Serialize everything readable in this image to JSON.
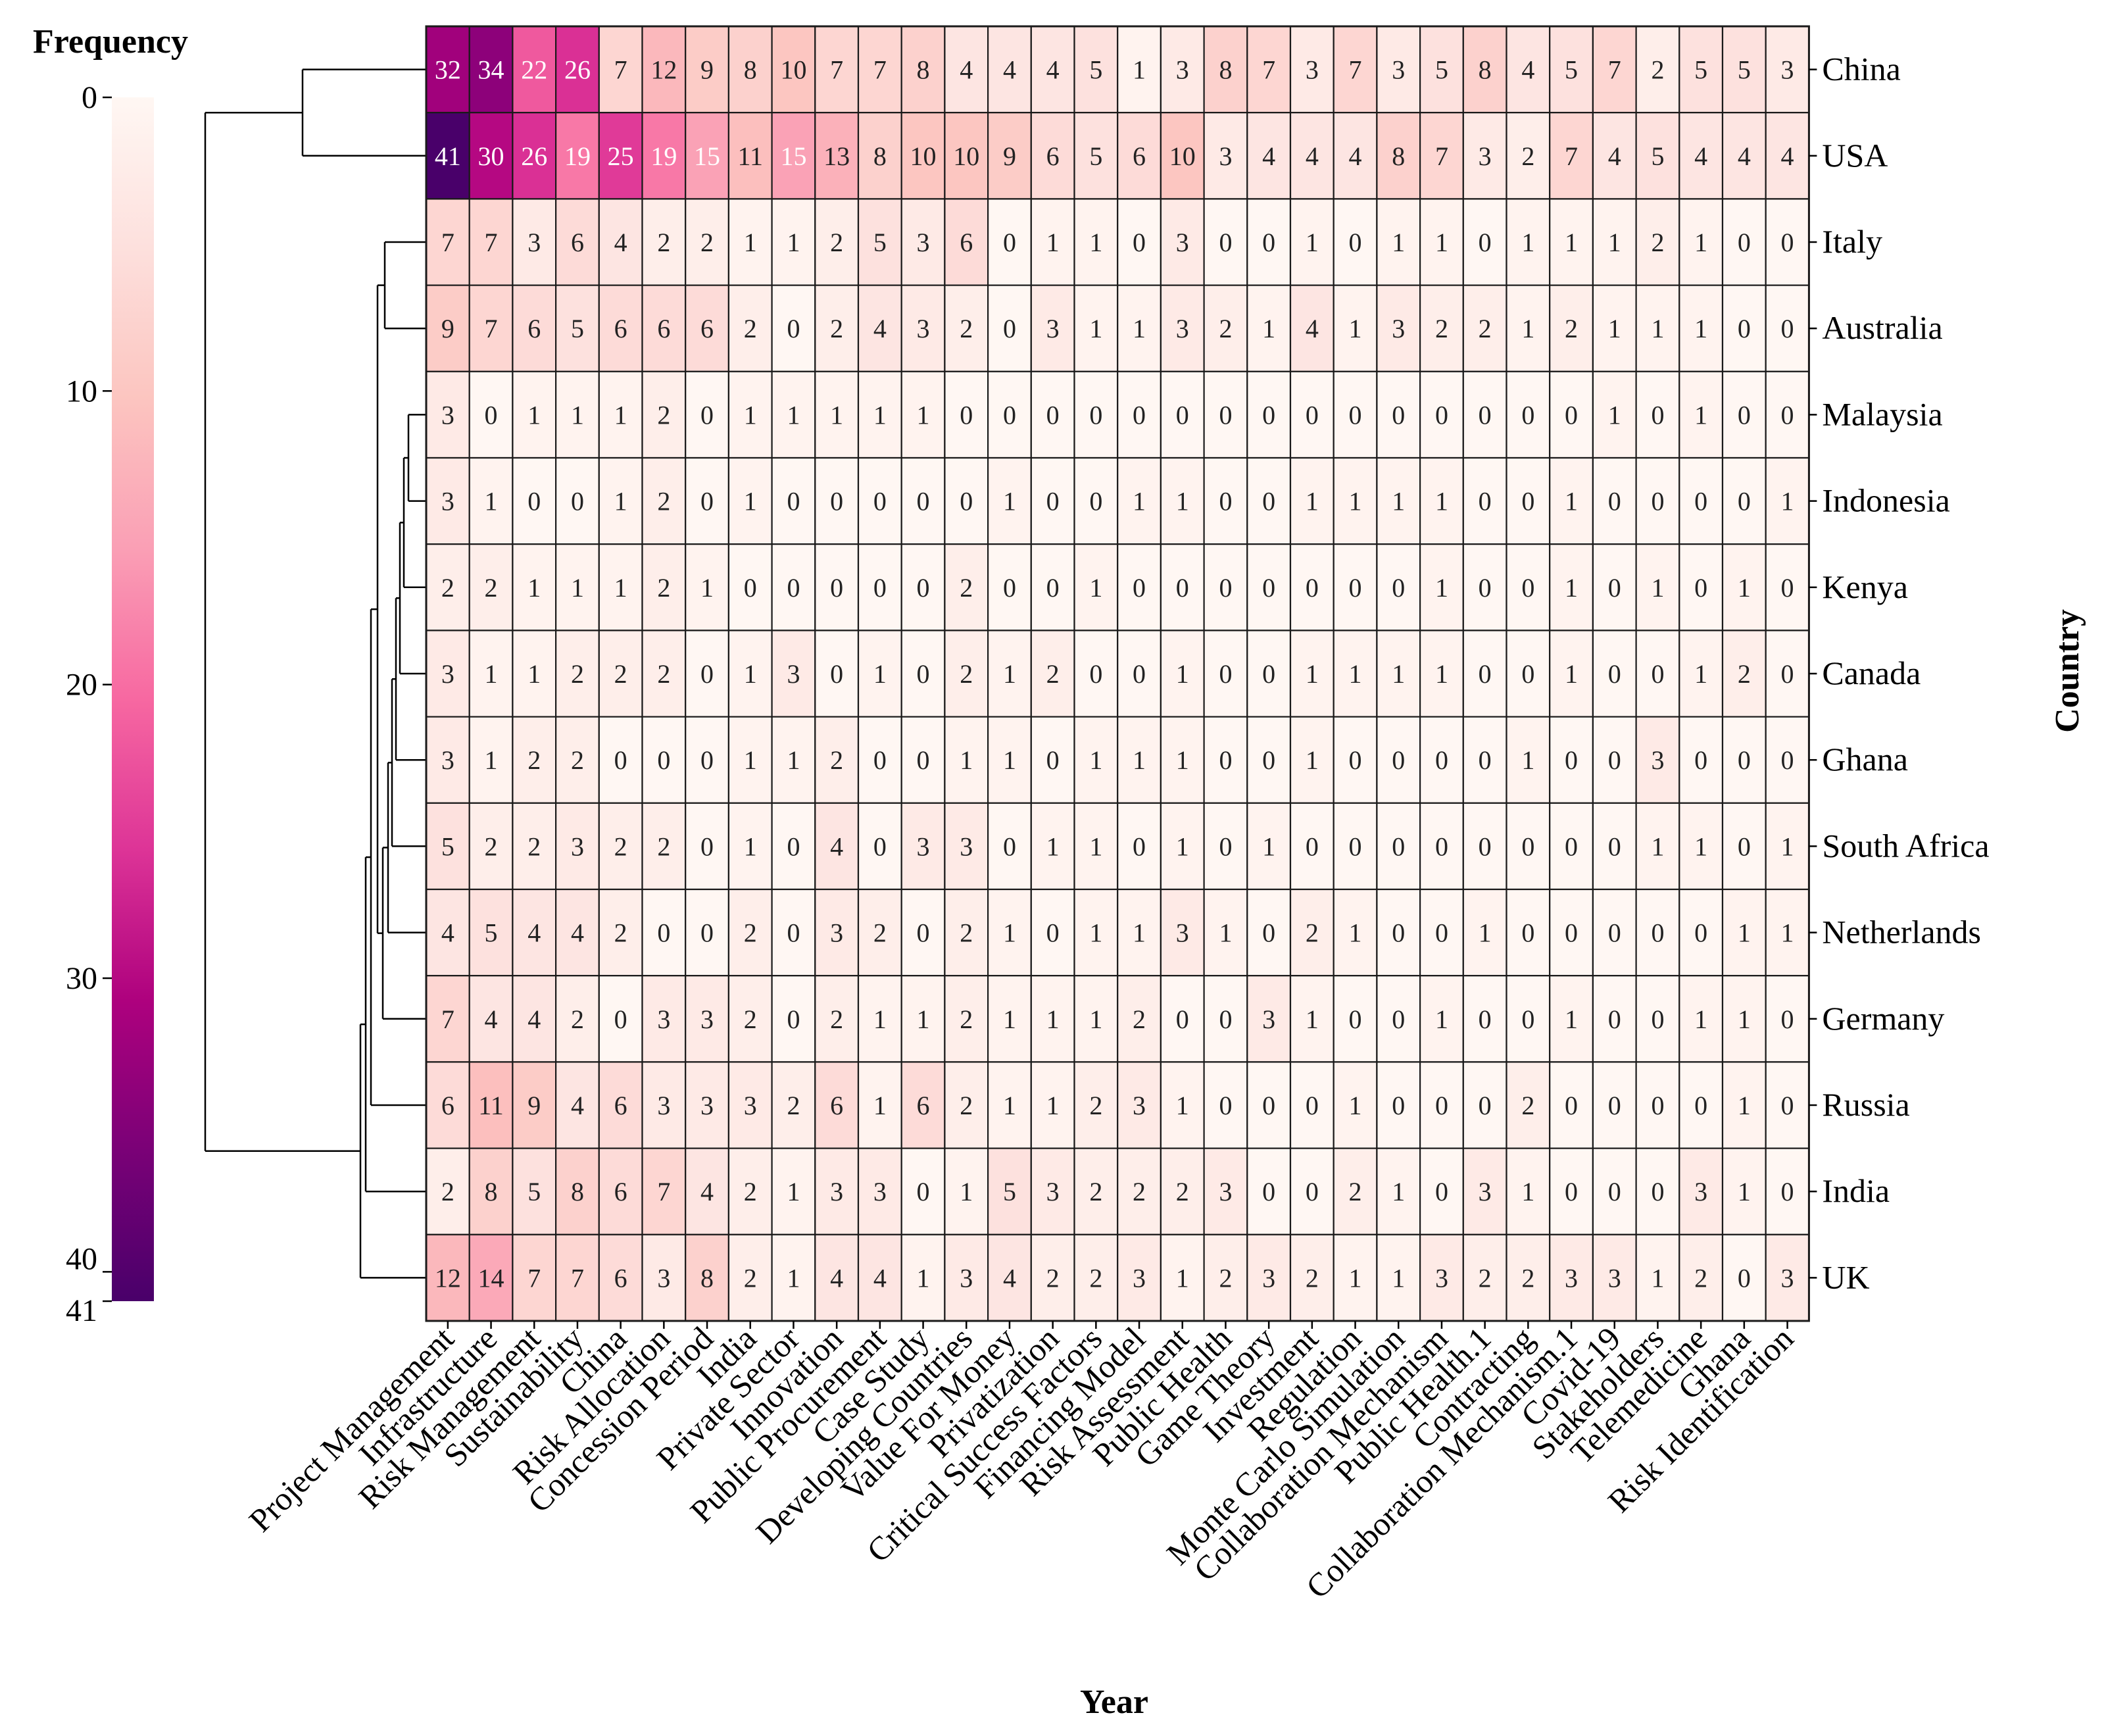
{
  "chart_data": {
    "type": "heatmap",
    "title": "",
    "xlabel": "Year",
    "ylabel": "Country",
    "colorbar": {
      "title": "Frequency",
      "min": 0,
      "max": 41,
      "ticks": [
        0,
        10,
        20,
        30,
        40,
        41
      ],
      "colors": [
        "#fff7f3",
        "#fde0dd",
        "#fcc5c0",
        "#fa9fb5",
        "#f768a1",
        "#dd3497",
        "#ae017e",
        "#7a0177",
        "#49006a"
      ]
    },
    "columns": [
      "Project Management",
      "Infrastructure",
      "Risk Management",
      "Sustainability",
      "China",
      "Risk Allocation",
      "Concession Period",
      "India",
      "Private Sector",
      "Innovation",
      "Public Procurement",
      "Case Study",
      "Developing Countries",
      "Value For Money",
      "Privatization",
      "Critical Success Factors",
      "Financing Model",
      "Risk Assessment",
      "Public Health",
      "Game Theory",
      "Investment",
      "Regulation",
      "Monte Carlo Simulation",
      "Collaboration Mechanism",
      "Public Health.1",
      "Contracting",
      "Collaboration Mechanism.1",
      "Covid-19",
      "Stakeholders",
      "Telemedicine",
      "Ghana",
      "Risk Identification"
    ],
    "rows": [
      "China",
      "USA",
      "Italy",
      "Australia",
      "Malaysia",
      "Indonesia",
      "Kenya",
      "Canada",
      "Ghana",
      "South Africa",
      "Netherlands",
      "Germany",
      "Russia",
      "India",
      "UK"
    ],
    "values": [
      [
        32,
        34,
        22,
        26,
        7,
        12,
        9,
        8,
        10,
        7,
        7,
        8,
        4,
        4,
        4,
        5,
        1,
        3,
        8,
        7,
        3,
        7,
        3,
        5,
        8,
        4,
        5,
        7,
        2,
        5,
        5,
        3
      ],
      [
        41,
        30,
        26,
        19,
        25,
        19,
        15,
        11,
        15,
        13,
        8,
        10,
        10,
        9,
        6,
        5,
        6,
        10,
        3,
        4,
        4,
        4,
        8,
        7,
        3,
        2,
        7,
        4,
        5,
        4,
        4,
        4
      ],
      [
        7,
        7,
        3,
        6,
        4,
        2,
        2,
        1,
        1,
        2,
        5,
        3,
        6,
        0,
        1,
        1,
        0,
        3,
        0,
        0,
        1,
        0,
        1,
        1,
        0,
        1,
        1,
        1,
        2,
        1,
        0,
        0
      ],
      [
        9,
        7,
        6,
        5,
        6,
        6,
        6,
        2,
        0,
        2,
        4,
        3,
        2,
        0,
        3,
        1,
        1,
        3,
        2,
        1,
        4,
        1,
        3,
        2,
        2,
        1,
        2,
        1,
        1,
        1,
        0,
        0
      ],
      [
        3,
        0,
        1,
        1,
        1,
        2,
        0,
        1,
        1,
        1,
        1,
        1,
        0,
        0,
        0,
        0,
        0,
        0,
        0,
        0,
        0,
        0,
        0,
        0,
        0,
        0,
        0,
        1,
        0,
        1,
        0,
        0
      ],
      [
        3,
        1,
        0,
        0,
        1,
        2,
        0,
        1,
        0,
        0,
        0,
        0,
        0,
        1,
        0,
        0,
        1,
        1,
        0,
        0,
        1,
        1,
        1,
        1,
        0,
        0,
        1,
        0,
        0,
        0,
        0,
        1
      ],
      [
        2,
        2,
        1,
        1,
        1,
        2,
        1,
        0,
        0,
        0,
        0,
        0,
        2,
        0,
        0,
        1,
        0,
        0,
        0,
        0,
        0,
        0,
        0,
        1,
        0,
        0,
        1,
        0,
        1,
        0,
        1,
        0
      ],
      [
        3,
        1,
        1,
        2,
        2,
        2,
        0,
        1,
        3,
        0,
        1,
        0,
        2,
        1,
        2,
        0,
        0,
        1,
        0,
        0,
        1,
        1,
        1,
        1,
        0,
        0,
        1,
        0,
        0,
        1,
        2,
        0
      ],
      [
        3,
        1,
        2,
        2,
        0,
        0,
        0,
        1,
        1,
        2,
        0,
        0,
        1,
        1,
        0,
        1,
        1,
        1,
        0,
        0,
        1,
        0,
        0,
        0,
        0,
        1,
        0,
        0,
        3,
        0,
        0,
        0
      ],
      [
        5,
        2,
        2,
        3,
        2,
        2,
        0,
        1,
        0,
        4,
        0,
        3,
        3,
        0,
        1,
        1,
        0,
        1,
        0,
        1,
        0,
        0,
        0,
        0,
        0,
        0,
        0,
        0,
        1,
        1,
        0,
        1
      ],
      [
        4,
        5,
        4,
        4,
        2,
        0,
        0,
        2,
        0,
        3,
        2,
        0,
        2,
        1,
        0,
        1,
        1,
        3,
        1,
        0,
        2,
        1,
        0,
        0,
        1,
        0,
        0,
        0,
        0,
        0,
        1,
        1
      ],
      [
        7,
        4,
        4,
        2,
        0,
        3,
        3,
        2,
        0,
        2,
        1,
        1,
        2,
        1,
        1,
        1,
        2,
        0,
        0,
        3,
        1,
        0,
        0,
        1,
        0,
        0,
        1,
        0,
        0,
        1,
        1,
        0
      ],
      [
        6,
        11,
        9,
        4,
        6,
        3,
        3,
        3,
        2,
        6,
        1,
        6,
        2,
        1,
        1,
        2,
        3,
        1,
        0,
        0,
        0,
        1,
        0,
        0,
        0,
        2,
        0,
        0,
        0,
        0,
        1,
        0
      ],
      [
        2,
        8,
        5,
        8,
        6,
        7,
        4,
        2,
        1,
        3,
        3,
        0,
        1,
        5,
        3,
        2,
        2,
        2,
        3,
        0,
        0,
        2,
        1,
        0,
        3,
        1,
        0,
        0,
        0,
        3,
        1,
        0
      ],
      [
        12,
        14,
        7,
        7,
        6,
        3,
        8,
        2,
        1,
        4,
        4,
        1,
        3,
        4,
        2,
        2,
        3,
        1,
        2,
        3,
        2,
        1,
        1,
        3,
        2,
        2,
        3,
        3,
        1,
        2,
        0,
        3
      ]
    ]
  }
}
